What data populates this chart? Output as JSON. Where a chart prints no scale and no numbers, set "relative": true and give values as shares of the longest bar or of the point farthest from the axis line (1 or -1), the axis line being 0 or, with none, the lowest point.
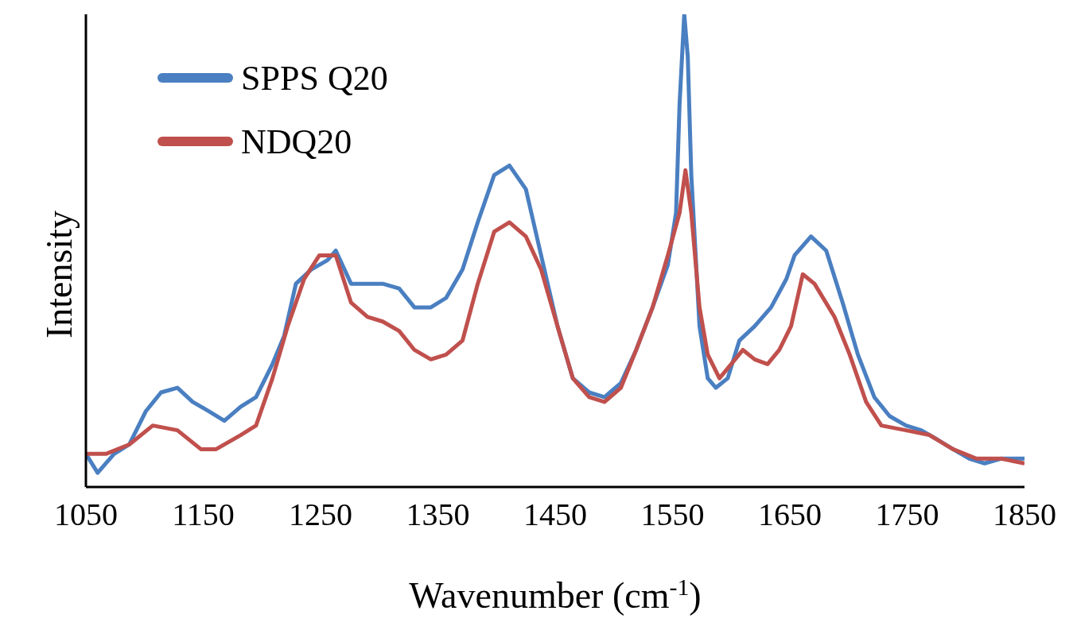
{
  "chart_data": {
    "type": "line",
    "relative": true,
    "xlabel": "Wavenumber (cm$^{-1}$)",
    "ylabel": "Intensity",
    "xlim": [
      1050,
      1850
    ],
    "xticks": [
      1050,
      1150,
      1250,
      1350,
      1450,
      1550,
      1650,
      1750,
      1850
    ],
    "legend": "top left",
    "grid": false,
    "marker": "none",
    "line_style": "solid",
    "series": [
      {
        "name": "SPPS Q20",
        "color": "#4a7fc1",
        "x": [
          1050,
          1060,
          1074,
          1087,
          1101,
          1114,
          1128,
          1141,
          1155,
          1168,
          1182,
          1195,
          1209,
          1219,
          1229,
          1242,
          1256,
          1263,
          1276,
          1290,
          1303,
          1317,
          1330,
          1344,
          1357,
          1371,
          1384,
          1398,
          1411,
          1425,
          1438,
          1452,
          1465,
          1479,
          1492,
          1506,
          1519,
          1533,
          1546,
          1553,
          1556,
          1560,
          1563,
          1566,
          1573,
          1580,
          1587,
          1597,
          1607,
          1620,
          1634,
          1647,
          1654,
          1668,
          1681,
          1695,
          1708,
          1722,
          1735,
          1749,
          1762,
          1776,
          1789,
          1803,
          1816,
          1830,
          1850
        ],
        "values": [
          0.07,
          0.03,
          0.07,
          0.09,
          0.16,
          0.2,
          0.21,
          0.18,
          0.16,
          0.14,
          0.17,
          0.19,
          0.26,
          0.32,
          0.43,
          0.46,
          0.48,
          0.5,
          0.43,
          0.43,
          0.43,
          0.42,
          0.38,
          0.38,
          0.4,
          0.46,
          0.56,
          0.66,
          0.68,
          0.63,
          0.49,
          0.34,
          0.23,
          0.2,
          0.19,
          0.22,
          0.29,
          0.38,
          0.47,
          0.58,
          0.81,
          1,
          0.91,
          0.66,
          0.34,
          0.23,
          0.21,
          0.23,
          0.31,
          0.34,
          0.38,
          0.44,
          0.49,
          0.53,
          0.5,
          0.39,
          0.28,
          0.19,
          0.15,
          0.13,
          0.12,
          0.1,
          0.08,
          0.06,
          0.05,
          0.06,
          0.06
        ]
      },
      {
        "name": "NDQ20",
        "color": "#c0504d",
        "x": [
          1050,
          1067,
          1087,
          1107,
          1128,
          1148,
          1161,
          1182,
          1195,
          1209,
          1222,
          1236,
          1249,
          1263,
          1276,
          1290,
          1303,
          1317,
          1330,
          1344,
          1357,
          1371,
          1384,
          1398,
          1411,
          1425,
          1438,
          1452,
          1465,
          1479,
          1492,
          1506,
          1519,
          1533,
          1546,
          1556,
          1561,
          1566,
          1573,
          1580,
          1590,
          1600,
          1610,
          1620,
          1631,
          1641,
          1651,
          1661,
          1671,
          1688,
          1701,
          1715,
          1728,
          1749,
          1769,
          1789,
          1809,
          1830,
          1850
        ],
        "values": [
          0.07,
          0.07,
          0.09,
          0.13,
          0.12,
          0.08,
          0.08,
          0.11,
          0.13,
          0.23,
          0.34,
          0.44,
          0.49,
          0.49,
          0.39,
          0.36,
          0.35,
          0.33,
          0.29,
          0.27,
          0.28,
          0.31,
          0.43,
          0.54,
          0.56,
          0.53,
          0.46,
          0.34,
          0.23,
          0.19,
          0.18,
          0.21,
          0.29,
          0.38,
          0.49,
          0.58,
          0.67,
          0.58,
          0.38,
          0.28,
          0.23,
          0.26,
          0.29,
          0.27,
          0.26,
          0.29,
          0.34,
          0.45,
          0.43,
          0.36,
          0.28,
          0.18,
          0.13,
          0.12,
          0.11,
          0.08,
          0.06,
          0.06,
          0.05
        ]
      }
    ]
  }
}
